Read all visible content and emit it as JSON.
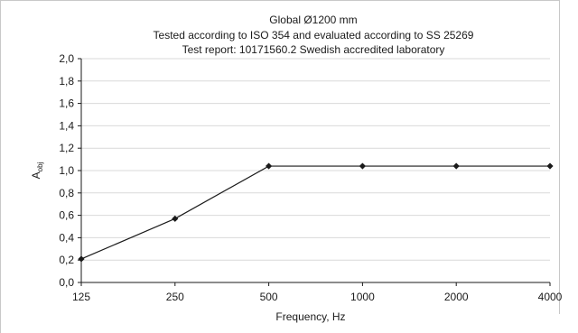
{
  "chart_data": {
    "type": "line",
    "title_lines": [
      "Global Ø1200 mm",
      "Tested according to ISO 354 and evaluated according to SS 25269",
      "Test report: 10171560.2 Swedish accredited laboratory"
    ],
    "xlabel": "Frequency, Hz",
    "ylabel_main": "A",
    "ylabel_sub": "obj",
    "categories": [
      "125",
      "250",
      "500",
      "1000",
      "2000",
      "4000"
    ],
    "values": [
      0.21,
      0.57,
      1.04,
      1.04,
      1.04,
      1.04
    ],
    "ylim": [
      0,
      2.0
    ],
    "yticks": [
      "0,0",
      "0,2",
      "0,4",
      "0,6",
      "0,8",
      "1,0",
      "1,2",
      "1,4",
      "1,6",
      "1,8",
      "2,0"
    ],
    "yticks_values": [
      0,
      0.2,
      0.4,
      0.6,
      0.8,
      1.0,
      1.2,
      1.4,
      1.6,
      1.8,
      2.0
    ],
    "grid": true,
    "line_color": "#1a1a1a",
    "grid_color": "#d9d9d9"
  }
}
